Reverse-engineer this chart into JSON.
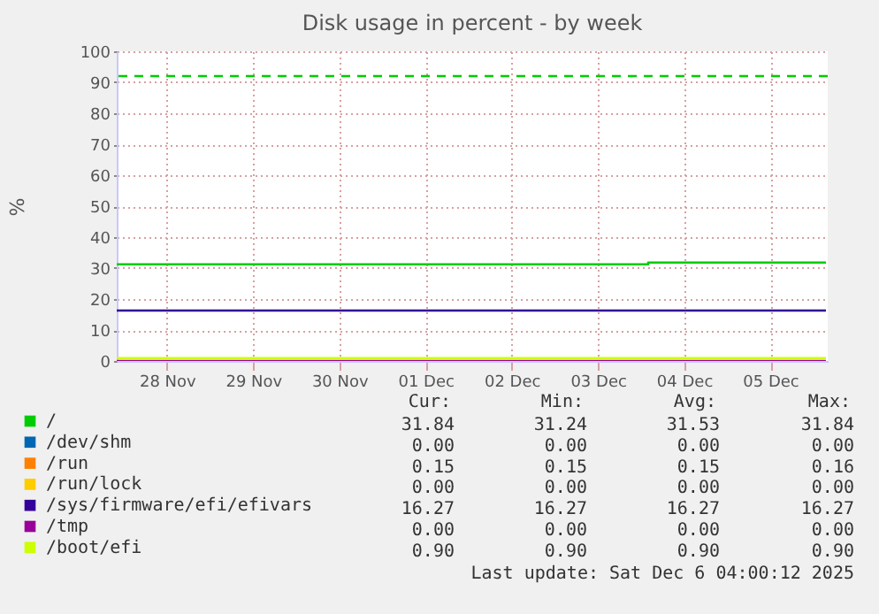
{
  "chart_data": {
    "type": "line",
    "title": "Disk usage in percent - by week",
    "ylabel": "%",
    "x": [
      "2025-11-27T22:00",
      "2025-12-06T03:30"
    ],
    "xlim": [
      "2025-11-27T22:00",
      "2025-12-06T04:00"
    ],
    "xticks": [
      {
        "value": "2025-11-28T12:00",
        "label": "28 Nov"
      },
      {
        "value": "2025-11-29T12:00",
        "label": "29 Nov"
      },
      {
        "value": "2025-11-30T12:00",
        "label": "30 Nov"
      },
      {
        "value": "2025-12-01T12:00",
        "label": "01 Dec"
      },
      {
        "value": "2025-12-02T12:00",
        "label": "02 Dec"
      },
      {
        "value": "2025-12-03T12:00",
        "label": "03 Dec"
      },
      {
        "value": "2025-12-04T12:00",
        "label": "04 Dec"
      },
      {
        "value": "2025-12-05T12:00",
        "label": "05 Dec"
      }
    ],
    "ylim": [
      0,
      100
    ],
    "yticks": [
      0,
      10,
      20,
      30,
      40,
      50,
      60,
      70,
      80,
      90,
      100
    ],
    "series": [
      {
        "name": "/",
        "color": "#00cc00",
        "type": "step",
        "x": [
          "2025-11-27T22:00",
          "2025-12-04T02:00",
          "2025-12-06T03:30"
        ],
        "values": [
          31.2,
          31.8,
          31.8
        ]
      },
      {
        "name": "/dev/shm",
        "color": "#0066b3",
        "values": [
          null,
          null
        ]
      },
      {
        "name": "/run",
        "color": "#ff8000",
        "values": [
          null,
          null
        ]
      },
      {
        "name": "/run/lock",
        "color": "#ffcc00",
        "values": [
          null,
          null
        ]
      },
      {
        "name": "/sys/firmware/efi/efivars",
        "color": "#330099",
        "values": [
          16.3,
          16.3
        ]
      },
      {
        "name": "/tmp",
        "color": "#990099",
        "values": [
          0,
          0
        ]
      },
      {
        "name": "/boot/efi",
        "color": "#ccff00",
        "values": [
          0.9,
          0.9
        ]
      }
    ],
    "ref_lines": [
      {
        "axis": "y",
        "value": 92,
        "color": "#00cc00",
        "line_style": "dashed"
      }
    ],
    "annotations": [
      "Cur:",
      "Min:",
      "Avg:",
      "Max:",
      "31.84",
      "31.24",
      "31.53",
      "31.84",
      "0.00",
      "0.00",
      "0.00",
      "0.00",
      "0.15",
      "0.15",
      "0.15",
      "0.16",
      "0.00",
      "0.00",
      "0.00",
      "0.00",
      "16.27",
      "16.27",
      "16.27",
      "16.27",
      "0.00",
      "0.00",
      "0.00",
      "0.00",
      "0.90",
      "0.90",
      "0.90",
      "0.90",
      "Last update: Sat Dec  6 04:00:12 2025"
    ],
    "grid": true,
    "legend": "bottom left"
  }
}
